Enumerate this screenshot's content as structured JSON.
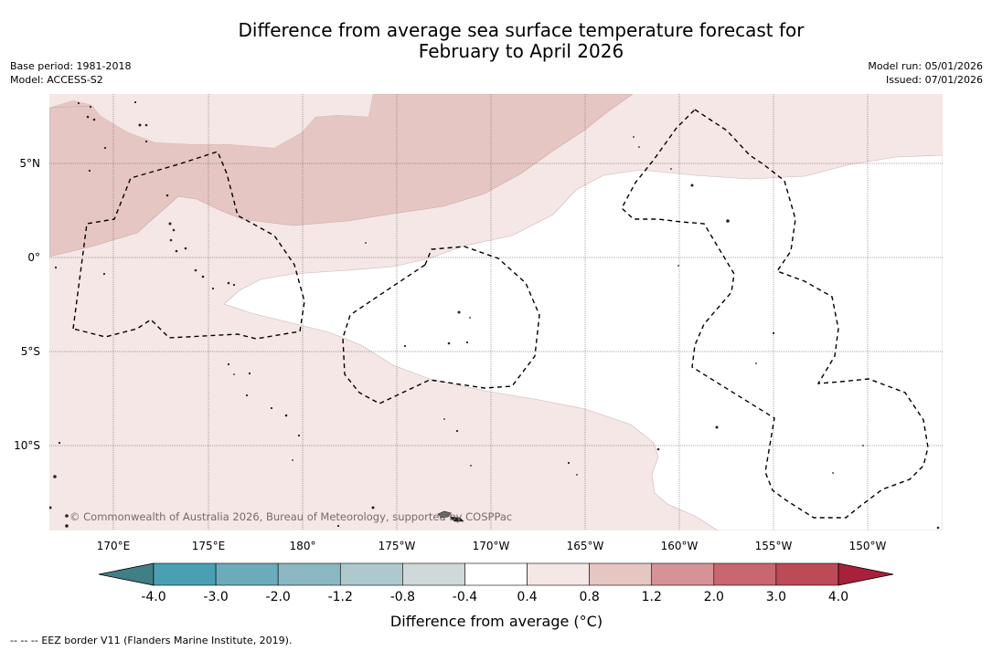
{
  "title": {
    "line1": "Difference from average sea surface temperature forecast for",
    "line2": "February to April 2026"
  },
  "meta": {
    "base_period": "Base period: 1981-2018",
    "model": "Model: ACCESS-S2",
    "model_run": "Model run: 05/01/2026",
    "issued": "Issued: 07/01/2026"
  },
  "map": {
    "latitude_labels": [
      "5°N",
      "0°",
      "5°S",
      "10°S"
    ],
    "longitude_labels": [
      "170°E",
      "175°E",
      "180°",
      "175°W",
      "170°W",
      "165°W",
      "160°W",
      "155°W",
      "150°W"
    ],
    "copyright": "© Commonwealth of Australia 2026, Bureau of Meteorology, supported by COSPPac",
    "anomaly_zones": [
      {
        "name": "warm-0.8-1.2",
        "range": "0.8 to 1.2 °C",
        "color": "#e6c6c2"
      },
      {
        "name": "warm-0.4-0.8",
        "range": "0.4 to 0.8 °C",
        "color": "#f4e7e5"
      },
      {
        "name": "neutral",
        "range": "-0.4 to 0.4 °C",
        "color": "#ffffff"
      }
    ]
  },
  "colorbar": {
    "title": "Difference from average (°C)",
    "ticks": [
      "-4.0",
      "-3.0",
      "-2.0",
      "-1.2",
      "-0.8",
      "-0.4",
      "0.4",
      "0.8",
      "1.2",
      "2.0",
      "3.0",
      "4.0"
    ],
    "segment_colors": [
      "#4aa0b3",
      "#6aacbb",
      "#8bb8c2",
      "#adc9cd",
      "#cfd9da",
      "#ffffff",
      "#f4e7e5",
      "#e6c6c2",
      "#d69297",
      "#c96670",
      "#bd4a57"
    ],
    "low_extend_color": "#3f7f85",
    "high_extend_color": "#a8203a"
  },
  "footer": {
    "legend_symbol": "--  --  --",
    "legend_text": "EEZ border V11 (Flanders Marine Institute, 2019)."
  }
}
